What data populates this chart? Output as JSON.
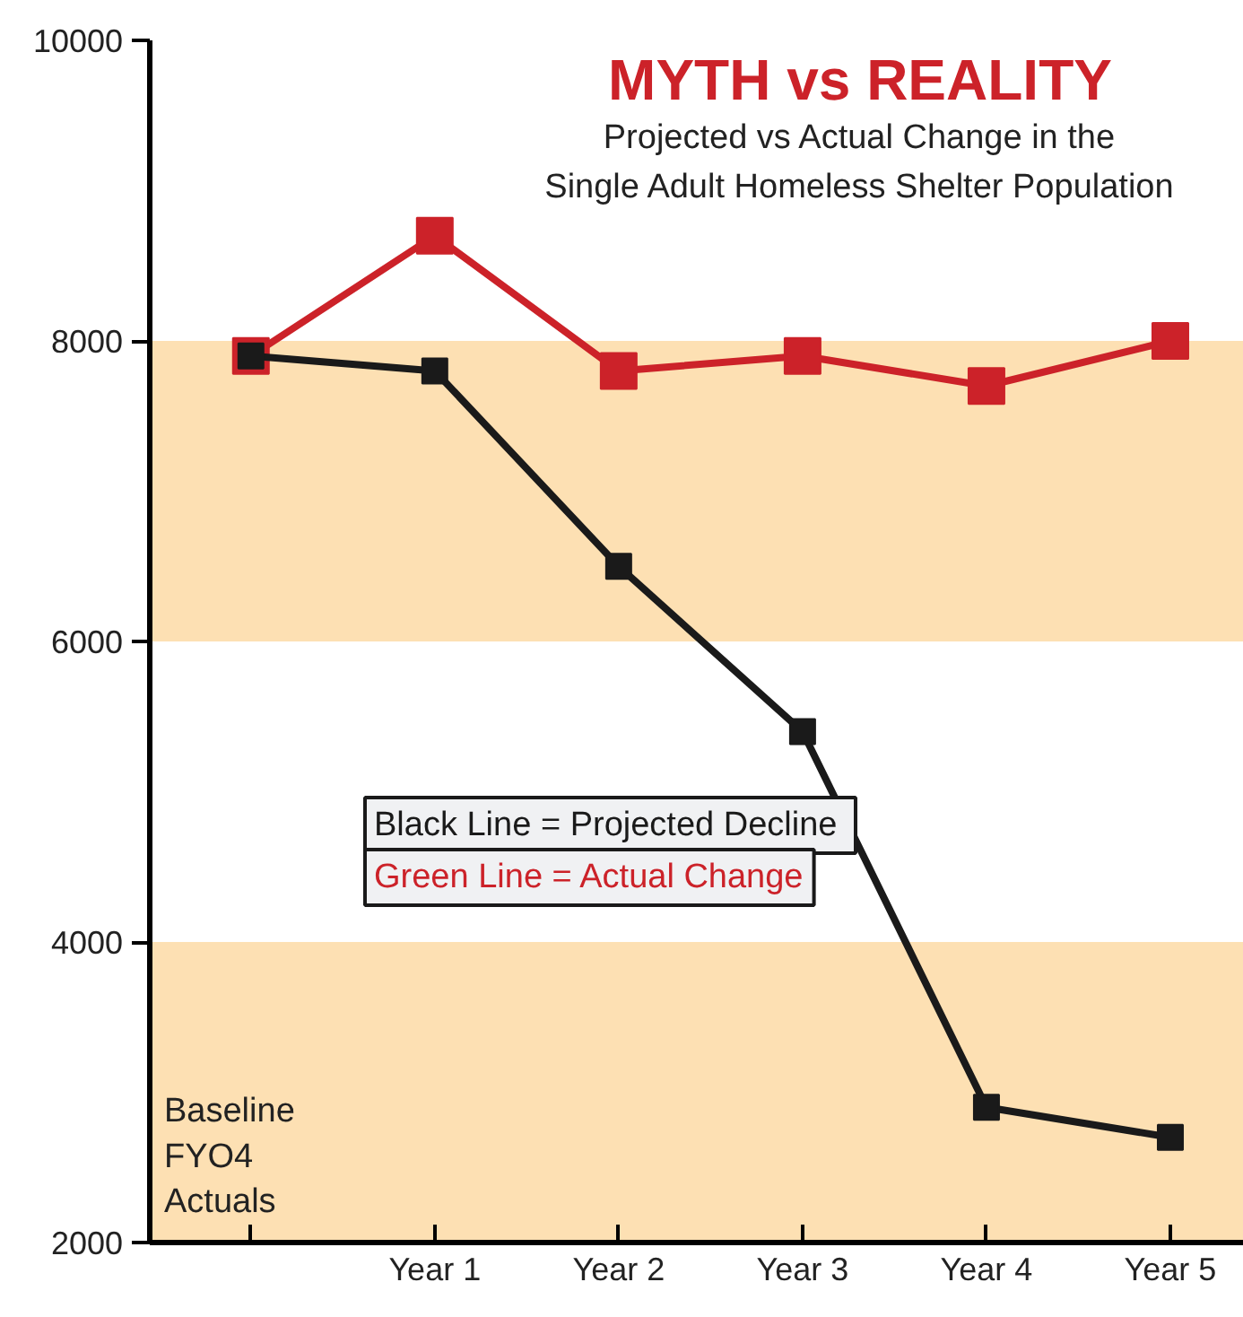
{
  "chart_data": {
    "type": "line",
    "title": "MYTH vs REALITY",
    "subtitle": "Projected vs Actual Change in the\nSingle Adult Homeless Shelter Population",
    "categories": [
      null,
      "Year 1",
      "Year 2",
      "Year 3",
      "Year 4",
      "Year 5"
    ],
    "series": [
      {
        "name": "Black Line  = Projected Decline",
        "color": "#1a1a1a",
        "values": [
          7900,
          7800,
          6500,
          5400,
          2900,
          2700
        ]
      },
      {
        "name": "Green Line = Actual Change",
        "color": "#cc2229",
        "values": [
          7900,
          8700,
          7800,
          7900,
          7700,
          8000
        ]
      }
    ],
    "ylim": [
      2000,
      10000
    ],
    "yticks": [
      2000,
      4000,
      6000,
      8000,
      10000
    ],
    "bands": [
      {
        "axis": "y",
        "from": 6000,
        "to": 8000,
        "color": "#fde0b3"
      },
      {
        "axis": "y",
        "from": 2000,
        "to": 4000,
        "color": "#fde0b3"
      }
    ],
    "annotations": [
      "Baseline\nFYO4\nActuals"
    ],
    "grid": false,
    "legend": "bottom",
    "marker": "square",
    "line_style": "solid"
  }
}
